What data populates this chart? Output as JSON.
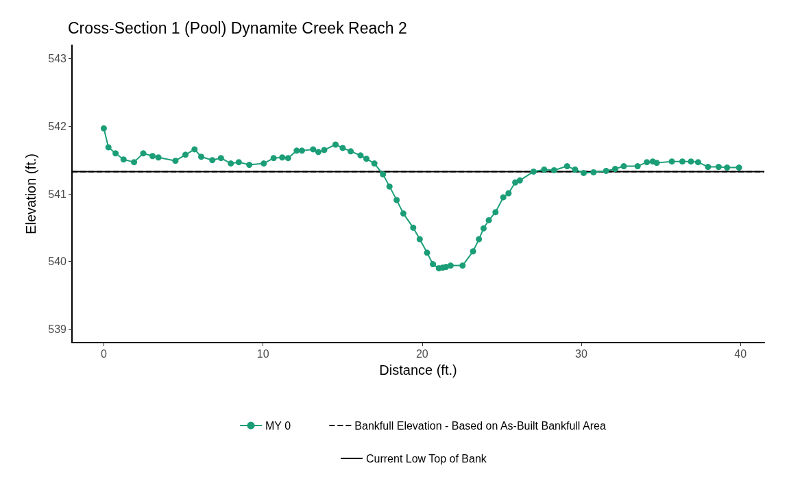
{
  "chart_data": {
    "type": "line",
    "title": "Cross-Section 1 (Pool) Dynamite Creek Reach 2",
    "xlabel": "Distance (ft.)",
    "ylabel": "Elevation (ft.)",
    "x": [
      0,
      0.29,
      0.74,
      1.24,
      1.9,
      2.48,
      3.06,
      3.43,
      4.5,
      5.13,
      5.7,
      6.12,
      6.82,
      7.36,
      7.98,
      8.48,
      9.14,
      10.05,
      10.67,
      11.21,
      11.58,
      12.12,
      12.45,
      13.15,
      13.48,
      13.85,
      14.56,
      15.01,
      15.51,
      16.13,
      16.5,
      17.0,
      17.54,
      17.95,
      18.4,
      18.82,
      19.44,
      19.85,
      20.31,
      20.68,
      21.05,
      21.3,
      21.5,
      21.79,
      22.54,
      23.2,
      23.57,
      23.86,
      24.19,
      24.61,
      25.1,
      25.43,
      25.85,
      26.14,
      27.0,
      27.67,
      28.29,
      29.11,
      29.61,
      30.15,
      30.77,
      31.56,
      32.13,
      32.67,
      33.54,
      34.12,
      34.49,
      34.74,
      35.69,
      36.35,
      36.89,
      37.34,
      37.96,
      38.63,
      39.16,
      39.91
    ],
    "series": [
      {
        "name": "MY 0",
        "color": "#1b9e77",
        "values": [
          541.97,
          541.69,
          541.6,
          541.51,
          541.47,
          541.6,
          541.56,
          541.54,
          541.49,
          541.58,
          541.66,
          541.55,
          541.5,
          541.53,
          541.45,
          541.47,
          541.43,
          541.45,
          541.53,
          541.54,
          541.53,
          541.64,
          541.64,
          541.66,
          541.62,
          541.65,
          541.73,
          541.68,
          541.63,
          541.57,
          541.52,
          541.45,
          541.29,
          541.11,
          540.91,
          540.71,
          540.5,
          540.33,
          540.13,
          539.96,
          539.9,
          539.91,
          539.92,
          539.94,
          539.94,
          540.15,
          540.33,
          540.49,
          540.61,
          540.73,
          540.95,
          541.01,
          541.17,
          541.2,
          541.33,
          541.36,
          541.35,
          541.41,
          541.36,
          541.31,
          541.32,
          541.34,
          541.37,
          541.41,
          541.41,
          541.47,
          541.48,
          541.46,
          541.48,
          541.48,
          541.48,
          541.47,
          541.4,
          541.4,
          541.39,
          541.39
        ]
      }
    ],
    "ref_lines": [
      {
        "axis": "y",
        "value": 541.33,
        "label": "Bankfull Elevation - Based on As-Built Bankfull Area",
        "color": "#000000",
        "line_style": "dashed"
      },
      {
        "axis": "y",
        "value": 541.33,
        "label": "Current Low Top of Bank",
        "color": "#000000",
        "line_style": "solid"
      }
    ],
    "xlim": [
      -2,
      41.5
    ],
    "xticks": [
      0,
      10,
      20,
      30,
      40
    ],
    "ylim": [
      538.8,
      543.2
    ],
    "yticks": [
      539,
      540,
      541,
      542,
      543
    ],
    "marker": "circle",
    "line_style": "solid",
    "grid": false,
    "legend": "bottom"
  }
}
